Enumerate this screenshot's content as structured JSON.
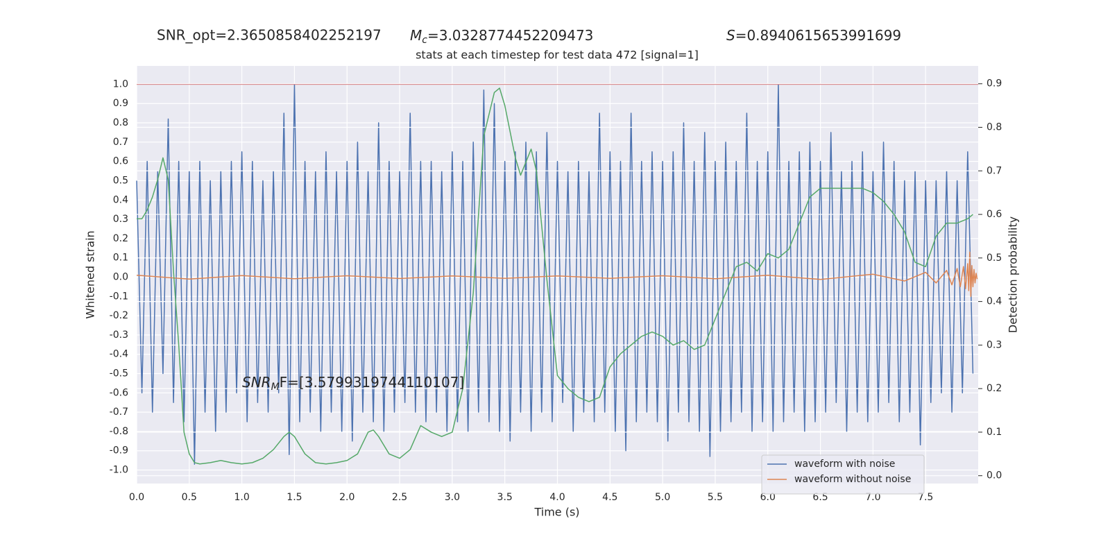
{
  "chart_data": {
    "type": "line",
    "stats": [
      {
        "text": "SNR_opt=2.3650858402252197"
      },
      {
        "symbol": "M",
        "subscript": "c",
        "text": "=3.0328774452209473"
      },
      {
        "symbol": "S",
        "text": "=0.8940615653991699"
      }
    ],
    "title": "stats at each timestep for test data 472 [signal=1]",
    "annotation": {
      "symbol": "SNR",
      "subscript": "M",
      "text": "F=[3.5799319744110107]"
    },
    "x_label": "Time (s)",
    "y_label": "Whitened strain",
    "y2_label": "Detection probability",
    "xlim": [
      0,
      8.0
    ],
    "ylim": [
      -1.07,
      1.095
    ],
    "y2lim": [
      -0.018,
      0.941
    ],
    "xticks": [
      {
        "value": 0,
        "label": "0.0"
      },
      0.5,
      {
        "value": 1,
        "label": "1.0"
      },
      1.5,
      {
        "value": 2,
        "label": "2.0"
      },
      2.5,
      {
        "value": 3,
        "label": "3.0"
      },
      3.5,
      {
        "value": 4,
        "label": "4.0"
      },
      4.5,
      {
        "value": 5,
        "label": "5.0"
      },
      5.5,
      {
        "value": 6,
        "label": "6.0"
      },
      6.5,
      {
        "value": 7,
        "label": "7.0"
      },
      7.5
    ],
    "yticks": [
      {
        "value": 1,
        "label": "1.0"
      },
      0.9,
      0.8,
      0.7,
      0.6,
      0.5,
      0.4,
      0.3,
      0.2,
      0.1,
      {
        "value": 0,
        "label": "0.0"
      },
      -0.1,
      -0.2,
      -0.3,
      -0.4,
      -0.5,
      -0.6,
      -0.7,
      -0.8,
      -0.9,
      {
        "value": -1,
        "label": "-1.0"
      }
    ],
    "y2ticks": [
      0.9,
      0.8,
      0.7,
      0.6,
      0.5,
      0.4,
      0.3,
      0.2,
      0.1,
      {
        "value": 0,
        "label": "0.0"
      }
    ],
    "grid": true,
    "y2grid": true,
    "legend": "lower right",
    "hlines": [
      {
        "value": 1,
        "color": "#c44e52"
      }
    ],
    "series": [
      {
        "name": "waveform with noise",
        "color": "#4c72b0",
        "axis": "y",
        "x": [
          0,
          0.05,
          0.1,
          0.15,
          0.2,
          0.25,
          0.3,
          0.35,
          0.4,
          0.45,
          0.5,
          0.55,
          0.6,
          0.65,
          0.7,
          0.75,
          0.8,
          0.85,
          0.9,
          0.95,
          1,
          1.05,
          1.1,
          1.15,
          1.2,
          1.25,
          1.3,
          1.35,
          1.4,
          1.45,
          1.5,
          1.55,
          1.6,
          1.65,
          1.7,
          1.75,
          1.8,
          1.85,
          1.9,
          1.95,
          2,
          2.05,
          2.1,
          2.15,
          2.2,
          2.25,
          2.3,
          2.35,
          2.4,
          2.45,
          2.5,
          2.55,
          2.6,
          2.65,
          2.7,
          2.75,
          2.8,
          2.85,
          2.9,
          2.95,
          3,
          3.05,
          3.1,
          3.15,
          3.2,
          3.25,
          3.3,
          3.35,
          3.4,
          3.45,
          3.5,
          3.55,
          3.6,
          3.65,
          3.7,
          3.75,
          3.8,
          3.85,
          3.9,
          3.95,
          4,
          4.05,
          4.1,
          4.15,
          4.2,
          4.25,
          4.3,
          4.35,
          4.4,
          4.45,
          4.5,
          4.55,
          4.6,
          4.65,
          4.7,
          4.75,
          4.8,
          4.85,
          4.9,
          4.95,
          5,
          5.05,
          5.1,
          5.15,
          5.2,
          5.25,
          5.3,
          5.35,
          5.4,
          5.45,
          5.5,
          5.55,
          5.6,
          5.65,
          5.7,
          5.75,
          5.8,
          5.85,
          5.9,
          5.95,
          6,
          6.05,
          6.1,
          6.15,
          6.2,
          6.25,
          6.3,
          6.35,
          6.4,
          6.45,
          6.5,
          6.55,
          6.6,
          6.65,
          6.7,
          6.75,
          6.8,
          6.85,
          6.9,
          6.95,
          7,
          7.05,
          7.1,
          7.15,
          7.2,
          7.25,
          7.3,
          7.35,
          7.4,
          7.45,
          7.5,
          7.55,
          7.6,
          7.65,
          7.7,
          7.75,
          7.8,
          7.85,
          7.9,
          7.95
        ],
        "values": [
          0.5,
          -0.6,
          0.6,
          -0.7,
          0.55,
          -0.5,
          0.82,
          -0.65,
          0.6,
          -0.75,
          0.55,
          -0.97,
          0.6,
          -0.7,
          0.5,
          -0.8,
          0.55,
          -0.7,
          0.6,
          -0.6,
          0.65,
          -0.75,
          0.6,
          -0.65,
          0.5,
          -0.7,
          0.55,
          -0.6,
          0.85,
          -0.92,
          1.0,
          -0.75,
          0.6,
          -0.7,
          0.55,
          -0.8,
          0.65,
          -0.7,
          0.55,
          -0.8,
          0.6,
          -0.85,
          0.7,
          -0.7,
          0.55,
          -0.75,
          0.8,
          -0.8,
          0.6,
          -0.7,
          0.55,
          -0.65,
          0.85,
          -0.7,
          0.6,
          -0.75,
          0.6,
          -0.7,
          0.55,
          -0.8,
          0.65,
          -0.75,
          0.6,
          -0.8,
          0.7,
          -0.7,
          0.97,
          -0.75,
          0.9,
          -0.8,
          0.6,
          -0.85,
          0.65,
          -0.7,
          0.7,
          -0.8,
          0.65,
          -0.7,
          0.75,
          -0.75,
          0.6,
          -0.65,
          0.55,
          -0.8,
          0.6,
          -0.7,
          0.55,
          -0.75,
          0.85,
          -0.7,
          0.65,
          -0.8,
          0.6,
          -0.9,
          0.85,
          -0.75,
          0.6,
          -0.7,
          0.65,
          -0.75,
          0.6,
          -0.85,
          0.65,
          -0.7,
          0.8,
          -0.75,
          0.6,
          -0.8,
          0.75,
          -0.93,
          0.6,
          -0.8,
          0.7,
          -0.75,
          0.6,
          -0.7,
          0.85,
          -0.8,
          0.6,
          -0.75,
          0.65,
          -0.8,
          1.0,
          -0.75,
          0.6,
          -0.7,
          0.65,
          -0.8,
          0.7,
          -0.75,
          0.6,
          -0.7,
          0.75,
          -0.65,
          0.55,
          -0.8,
          0.6,
          -0.7,
          0.65,
          -0.75,
          0.55,
          -0.7,
          0.7,
          -0.65,
          0.6,
          -0.75,
          0.5,
          -0.7,
          0.55,
          -0.87,
          0.5,
          -0.65,
          0.5,
          -0.6,
          0.55,
          -0.7,
          0.5,
          -0.6,
          0.65,
          -0.5
        ]
      },
      {
        "name": "waveform without noise",
        "color": "#dd8452",
        "axis": "y",
        "x": [
          0,
          0.5,
          1,
          1.5,
          2,
          2.5,
          3,
          3.5,
          4,
          4.5,
          5,
          5.5,
          6,
          6.5,
          7,
          7.3,
          7.5,
          7.6,
          7.7,
          7.75,
          7.8,
          7.83,
          7.86,
          7.88,
          7.9,
          7.91,
          7.92,
          7.93,
          7.94,
          7.95,
          7.96,
          7.97,
          7.98,
          7.99
        ],
        "values": [
          0.01,
          -0.01,
          0.008,
          -0.008,
          0.007,
          -0.007,
          0.006,
          -0.006,
          0.006,
          -0.006,
          0.007,
          -0.008,
          0.01,
          -0.012,
          0.015,
          -0.02,
          0.025,
          -0.03,
          0.035,
          -0.04,
          0.045,
          -0.05,
          0.055,
          -0.06,
          0.07,
          -0.07,
          0.13,
          -0.1,
          0.06,
          -0.05,
          0.04,
          -0.03,
          0.02,
          -0.01
        ]
      },
      {
        "color": "#55a868",
        "axis": "y2",
        "x": [
          0,
          0.05,
          0.1,
          0.15,
          0.2,
          0.25,
          0.3,
          0.35,
          0.4,
          0.45,
          0.5,
          0.55,
          0.6,
          0.7,
          0.8,
          0.9,
          1,
          1.1,
          1.2,
          1.3,
          1.4,
          1.45,
          1.5,
          1.6,
          1.7,
          1.8,
          1.9,
          2,
          2.1,
          2.2,
          2.25,
          2.3,
          2.4,
          2.5,
          2.6,
          2.7,
          2.8,
          2.9,
          3,
          3.1,
          3.2,
          3.3,
          3.4,
          3.45,
          3.5,
          3.6,
          3.65,
          3.7,
          3.75,
          3.8,
          3.9,
          4,
          4.1,
          4.2,
          4.3,
          4.4,
          4.5,
          4.6,
          4.7,
          4.8,
          4.9,
          5,
          5.1,
          5.2,
          5.3,
          5.4,
          5.5,
          5.6,
          5.7,
          5.8,
          5.9,
          6,
          6.1,
          6.2,
          6.3,
          6.4,
          6.5,
          6.6,
          6.7,
          6.8,
          6.9,
          7,
          7.1,
          7.2,
          7.3,
          7.4,
          7.5,
          7.6,
          7.7,
          7.8,
          7.9,
          7.95
        ],
        "values": [
          0.59,
          0.59,
          0.61,
          0.64,
          0.68,
          0.73,
          0.68,
          0.47,
          0.3,
          0.1,
          0.05,
          0.03,
          0.027,
          0.03,
          0.035,
          0.03,
          0.027,
          0.03,
          0.04,
          0.06,
          0.09,
          0.1,
          0.09,
          0.05,
          0.03,
          0.027,
          0.03,
          0.035,
          0.05,
          0.1,
          0.105,
          0.09,
          0.05,
          0.04,
          0.06,
          0.115,
          0.1,
          0.09,
          0.1,
          0.2,
          0.42,
          0.78,
          0.88,
          0.89,
          0.85,
          0.73,
          0.69,
          0.72,
          0.75,
          0.7,
          0.45,
          0.23,
          0.2,
          0.18,
          0.17,
          0.18,
          0.25,
          0.28,
          0.3,
          0.32,
          0.33,
          0.32,
          0.3,
          0.31,
          0.29,
          0.3,
          0.36,
          0.42,
          0.48,
          0.49,
          0.47,
          0.51,
          0.5,
          0.52,
          0.58,
          0.64,
          0.66,
          0.66,
          0.66,
          0.66,
          0.66,
          0.65,
          0.63,
          0.6,
          0.56,
          0.49,
          0.48,
          0.55,
          0.58,
          0.58,
          0.59,
          0.6
        ]
      }
    ]
  }
}
